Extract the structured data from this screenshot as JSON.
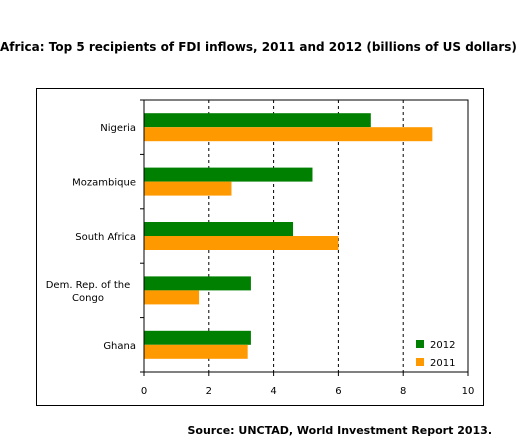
{
  "chart_data": {
    "type": "bar",
    "orientation": "horizontal",
    "title": "Africa: Top 5 recipients of FDI inflows, 2011 and 2012 (billions of US dollars)",
    "categories": [
      "Nigeria",
      "Mozambique",
      "South Africa",
      "Dem. Rep. of the Congo",
      "Ghana"
    ],
    "category_lines": [
      [
        "Nigeria"
      ],
      [
        "Mozambique"
      ],
      [
        "South Africa"
      ],
      [
        "Dem. Rep. of the",
        "Congo"
      ],
      [
        "Ghana"
      ]
    ],
    "series": [
      {
        "name": "2012",
        "color": "#008000",
        "values": [
          7.0,
          5.2,
          4.6,
          3.3,
          3.3
        ]
      },
      {
        "name": "2011",
        "color": "#FF9900",
        "values": [
          8.9,
          2.7,
          6.0,
          1.7,
          3.2
        ]
      }
    ],
    "xlim": [
      0,
      10
    ],
    "xticks": [
      "0",
      "2",
      "4",
      "6",
      "8",
      "10"
    ],
    "grid": "vertical dashed",
    "legend": "bottom-right"
  },
  "source": "Source: UNCTAD, World Investment Report 2013."
}
